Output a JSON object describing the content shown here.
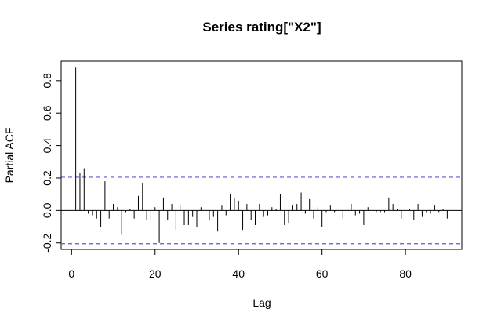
{
  "chart_data": {
    "type": "bar",
    "title": "Series  rating[\"X2\"]",
    "xlabel": "Lag",
    "ylabel": "Partial ACF",
    "xlim": [
      -2.5,
      93.5
    ],
    "ylim": [
      -0.24,
      0.92
    ],
    "x_ticks": [
      0,
      20,
      40,
      60,
      80
    ],
    "x_tick_labels": [
      "0",
      "20",
      "40",
      "60",
      "80"
    ],
    "y_ticks": [
      -0.2,
      0.0,
      0.2,
      0.4,
      0.6,
      0.8
    ],
    "y_tick_labels": [
      "-0.2",
      "0.0",
      "0.2",
      "0.4",
      "0.6",
      "0.8"
    ],
    "confidence_bound": 0.205,
    "colors": {
      "bars": "#000000",
      "confidence": "#5b5bd6",
      "zero_line": "#000000"
    },
    "grid": false,
    "lags": [
      1,
      2,
      3,
      4,
      5,
      6,
      7,
      8,
      9,
      10,
      11,
      12,
      13,
      14,
      15,
      16,
      17,
      18,
      19,
      20,
      21,
      22,
      23,
      24,
      25,
      26,
      27,
      28,
      29,
      30,
      31,
      32,
      33,
      34,
      35,
      36,
      37,
      38,
      39,
      40,
      41,
      42,
      43,
      44,
      45,
      46,
      47,
      48,
      49,
      50,
      51,
      52,
      53,
      54,
      55,
      56,
      57,
      58,
      59,
      60,
      61,
      62,
      63,
      64,
      65,
      66,
      67,
      68,
      69,
      70,
      71,
      72,
      73,
      74,
      75,
      76,
      77,
      78,
      79,
      80,
      81,
      82,
      83,
      84,
      85,
      86,
      87,
      88,
      89,
      90
    ],
    "values": [
      0.88,
      0.23,
      0.26,
      -0.02,
      -0.03,
      -0.05,
      -0.1,
      0.18,
      -0.05,
      0.04,
      0.02,
      -0.15,
      -0.01,
      0.01,
      -0.05,
      0.09,
      0.17,
      -0.06,
      -0.07,
      0.02,
      -0.2,
      0.08,
      -0.06,
      0.04,
      -0.12,
      0.03,
      -0.09,
      -0.09,
      -0.04,
      -0.1,
      0.02,
      0.01,
      -0.06,
      -0.04,
      -0.13,
      0.03,
      -0.03,
      0.1,
      0.08,
      0.06,
      -0.12,
      0.04,
      -0.06,
      -0.09,
      0.04,
      -0.04,
      -0.03,
      0.02,
      0.01,
      0.1,
      -0.09,
      -0.08,
      0.03,
      0.04,
      0.11,
      -0.02,
      0.07,
      -0.05,
      0.02,
      -0.1,
      -0.01,
      0.03,
      -0.01,
      0.0,
      -0.05,
      0.01,
      0.04,
      -0.03,
      -0.02,
      -0.09,
      0.02,
      0.01,
      -0.01,
      -0.01,
      -0.01,
      0.08,
      0.04,
      0.01,
      -0.05,
      0.0,
      0.01,
      -0.06,
      0.04,
      -0.04,
      -0.01,
      -0.02,
      0.03,
      -0.01,
      0.01,
      -0.05
    ]
  }
}
